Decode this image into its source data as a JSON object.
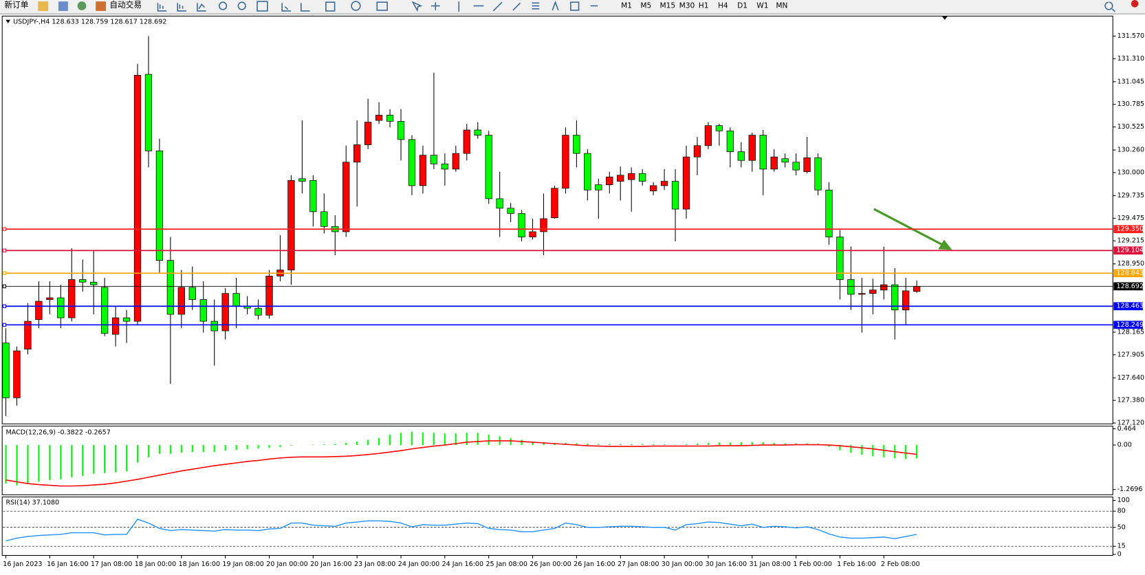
{
  "toolbar": {
    "new_order": "新订单",
    "auto_trading": "自动交易",
    "timeframes": [
      "M1",
      "M5",
      "M15",
      "M30",
      "H1",
      "H4",
      "D1",
      "W1",
      "MN"
    ]
  },
  "chart_data": [
    {
      "type": "candlestick",
      "title": "USDJPY-,H4  128.633 128.759 128.617 128.692",
      "up_color": "#ff0000",
      "down_color": "#00ff00",
      "categories": [
        "16 Jan 2023",
        null,
        null,
        null,
        "16 Jan 16:00",
        null,
        null,
        null,
        "17 Jan 08:00",
        null,
        null,
        null,
        "18 Jan 00:00",
        null,
        null,
        null,
        "18 Jan 16:00",
        null,
        null,
        null,
        "19 Jan 08:00",
        null,
        null,
        null,
        "20 Jan 00:00",
        null,
        null,
        null,
        "20 Jan 16:00",
        null,
        null,
        null,
        "23 Jan 08:00",
        null,
        null,
        null,
        "24 Jan 00:00",
        null,
        null,
        null,
        "24 Jan 16:00",
        null,
        null,
        null,
        "25 Jan 08:00",
        null,
        null,
        null,
        "26 Jan 00:00",
        null,
        null,
        null,
        "26 Jan 16:00",
        null,
        null,
        null,
        "27 Jan 08:00",
        null,
        null,
        null,
        "30 Jan 00:00",
        null,
        null,
        null,
        "30 Jan 16:00",
        null,
        null,
        null,
        "31 Jan 08:00",
        null,
        null,
        null,
        "1 Feb 00:00",
        null,
        null,
        null,
        "1 Feb 16:00",
        null,
        null,
        null,
        "2 Feb 08:00",
        null,
        null,
        null
      ],
      "ohlc": [
        [
          128.04,
          128.21,
          127.2,
          127.41
        ],
        [
          127.41,
          128.0,
          127.32,
          127.95
        ],
        [
          127.97,
          128.5,
          127.91,
          128.29
        ],
        [
          128.31,
          128.75,
          128.21,
          128.52
        ],
        [
          128.54,
          128.75,
          128.37,
          128.56
        ],
        [
          128.56,
          128.71,
          128.21,
          128.33
        ],
        [
          128.33,
          129.13,
          128.29,
          128.77
        ],
        [
          128.77,
          129.0,
          128.63,
          128.74
        ],
        [
          128.74,
          129.11,
          128.37,
          128.71
        ],
        [
          128.68,
          128.79,
          128.12,
          128.15
        ],
        [
          128.14,
          128.46,
          128.0,
          128.33
        ],
        [
          128.33,
          128.42,
          128.04,
          128.29
        ],
        [
          128.29,
          131.25,
          128.25,
          131.12
        ],
        [
          131.13,
          131.57,
          130.06,
          130.25
        ],
        [
          130.25,
          130.39,
          128.84,
          128.99
        ],
        [
          128.99,
          129.26,
          127.57,
          128.37
        ],
        [
          128.37,
          128.88,
          128.21,
          128.68
        ],
        [
          128.68,
          128.92,
          128.42,
          128.54
        ],
        [
          128.54,
          128.75,
          128.16,
          128.29
        ],
        [
          128.29,
          128.54,
          127.78,
          128.18
        ],
        [
          128.18,
          128.67,
          128.08,
          128.61
        ],
        [
          128.61,
          128.79,
          128.21,
          128.46
        ],
        [
          128.46,
          128.58,
          128.37,
          128.44
        ],
        [
          128.44,
          128.54,
          128.31,
          128.36
        ],
        [
          128.36,
          128.88,
          128.32,
          128.81
        ],
        [
          128.81,
          129.28,
          128.75,
          128.88
        ],
        [
          128.88,
          129.97,
          128.71,
          129.91
        ],
        [
          129.93,
          130.6,
          129.76,
          129.9
        ],
        [
          129.91,
          129.97,
          129.38,
          129.55
        ],
        [
          129.55,
          129.76,
          129.3,
          129.38
        ],
        [
          129.38,
          129.51,
          129.05,
          129.32
        ],
        [
          129.32,
          130.31,
          129.26,
          130.12
        ],
        [
          130.12,
          130.6,
          129.61,
          130.32
        ],
        [
          130.32,
          130.85,
          130.27,
          130.58
        ],
        [
          130.6,
          130.81,
          130.56,
          130.66
        ],
        [
          130.66,
          130.73,
          130.52,
          130.59
        ],
        [
          130.59,
          130.73,
          130.14,
          130.38
        ],
        [
          130.38,
          130.43,
          129.74,
          129.85
        ],
        [
          129.85,
          130.31,
          129.76,
          130.2
        ],
        [
          130.2,
          131.15,
          130.04,
          130.1
        ],
        [
          130.1,
          130.22,
          129.85,
          130.04
        ],
        [
          130.04,
          130.31,
          130.01,
          130.22
        ],
        [
          130.22,
          130.56,
          130.14,
          130.49
        ],
        [
          130.49,
          130.58,
          130.39,
          130.43
        ],
        [
          130.43,
          130.48,
          129.64,
          129.7
        ],
        [
          129.7,
          130.01,
          129.26,
          129.59
        ],
        [
          129.59,
          129.65,
          129.43,
          129.53
        ],
        [
          129.53,
          129.57,
          129.21,
          129.26
        ],
        [
          129.26,
          129.47,
          129.23,
          129.32
        ],
        [
          129.32,
          129.76,
          129.05,
          129.47
        ],
        [
          129.48,
          129.85,
          129.47,
          129.82
        ],
        [
          129.82,
          130.52,
          129.76,
          130.43
        ],
        [
          130.43,
          130.6,
          130.06,
          130.22
        ],
        [
          130.22,
          130.27,
          129.68,
          129.8
        ],
        [
          129.86,
          129.93,
          129.47,
          129.8
        ],
        [
          129.86,
          130.01,
          129.76,
          129.95
        ],
        [
          129.9,
          130.07,
          129.68,
          129.97
        ],
        [
          129.92,
          130.06,
          129.55,
          129.99
        ],
        [
          129.99,
          130.04,
          129.85,
          129.9
        ],
        [
          129.79,
          129.89,
          129.74,
          129.85
        ],
        [
          129.85,
          130.04,
          129.8,
          129.9
        ],
        [
          129.9,
          130.04,
          129.21,
          129.58
        ],
        [
          129.58,
          130.31,
          129.47,
          130.18
        ],
        [
          130.18,
          130.41,
          129.97,
          130.31
        ],
        [
          130.31,
          130.58,
          130.27,
          130.54
        ],
        [
          130.54,
          130.56,
          130.31,
          130.48
        ],
        [
          130.48,
          130.52,
          130.06,
          130.24
        ],
        [
          130.24,
          130.35,
          130.06,
          130.14
        ],
        [
          130.14,
          130.46,
          130.01,
          130.43
        ],
        [
          130.43,
          130.49,
          129.74,
          130.04
        ],
        [
          130.04,
          130.27,
          130.01,
          130.18
        ],
        [
          130.16,
          130.22,
          130.06,
          130.12
        ],
        [
          130.12,
          130.22,
          129.97,
          130.03
        ],
        [
          130.01,
          130.41,
          129.99,
          130.17
        ],
        [
          130.17,
          130.22,
          129.74,
          129.8
        ],
        [
          129.8,
          129.89,
          129.17,
          129.26
        ],
        [
          129.26,
          129.34,
          128.54,
          128.77
        ],
        [
          128.77,
          129.15,
          128.42,
          128.6
        ],
        [
          128.6,
          128.79,
          128.16,
          128.61
        ],
        [
          128.61,
          128.78,
          128.37,
          128.65
        ],
        [
          128.65,
          129.15,
          128.54,
          128.71
        ],
        [
          128.71,
          128.9,
          128.08,
          128.42
        ],
        [
          128.42,
          128.79,
          128.25,
          128.64
        ],
        [
          128.633,
          128.759,
          128.617,
          128.692
        ]
      ],
      "ylim": [
        127.11,
        131.8
      ],
      "yticks": [
        {
          "value": 131.57,
          "label": "131.570"
        },
        {
          "value": 131.31,
          "label": "131.310"
        },
        131.045,
        130.785,
        130.525,
        {
          "value": 130.26,
          "label": "130.260"
        },
        {
          "value": 130,
          "label": "130.000"
        },
        129.735,
        129.475,
        129.215,
        {
          "value": 128.95,
          "label": "128.950"
        },
        128.165,
        127.905,
        {
          "value": 127.64,
          "label": "127.640"
        },
        {
          "value": 127.38,
          "label": "127.380"
        },
        {
          "value": 127.12,
          "label": "127.120"
        }
      ],
      "levels": [
        {
          "value": 129.35,
          "label": "129.350",
          "color": "#ff2020"
        },
        {
          "value": 129.104,
          "label": "129.104",
          "color": "#e0103c"
        },
        {
          "value": 128.843,
          "label": "128.843",
          "color": "#ffa500"
        },
        {
          "value": 128.692,
          "label": "128.692",
          "color": "#000000"
        },
        {
          "value": 128.463,
          "label": "128.463",
          "color": "#0000ff"
        },
        {
          "value": 128.249,
          "label": "128.249",
          "color": "#0000ff"
        }
      ]
    },
    {
      "type": "macd",
      "title": "MACD(12,26,9) -0.3822 -0.2657",
      "histogram": {
        "color": "#00ff00",
        "values": [
          -1.1,
          -1.15,
          -1.12,
          -1.05,
          -1.0,
          -0.98,
          -0.92,
          -0.88,
          -0.82,
          -0.8,
          -0.78,
          -0.75,
          -0.5,
          -0.35,
          -0.25,
          -0.25,
          -0.22,
          -0.2,
          -0.2,
          -0.2,
          -0.16,
          -0.14,
          -0.12,
          -0.1,
          -0.08,
          -0.06,
          -0.02,
          0.0,
          0.01,
          0.02,
          0.03,
          0.06,
          0.1,
          0.15,
          0.2,
          0.3,
          0.35,
          0.38,
          0.36,
          0.35,
          0.33,
          0.33,
          0.35,
          0.35,
          0.3,
          0.25,
          0.2,
          0.15,
          0.1,
          0.08,
          0.06,
          0.06,
          0.05,
          0.04,
          0.03,
          0.03,
          0.03,
          0.03,
          0.03,
          0.02,
          0.02,
          0.01,
          0.02,
          0.04,
          0.06,
          0.07,
          0.07,
          0.08,
          0.08,
          0.08,
          0.06,
          0.05,
          0.05,
          0.05,
          0.04,
          -0.05,
          -0.15,
          -0.22,
          -0.28,
          -0.32,
          -0.35,
          -0.38,
          -0.4,
          -0.3822
        ]
      },
      "signal": {
        "color": "#ff0000",
        "values": [
          -1.0,
          -1.05,
          -1.1,
          -1.13,
          -1.15,
          -1.17,
          -1.17,
          -1.16,
          -1.14,
          -1.12,
          -1.08,
          -1.03,
          -0.98,
          -0.92,
          -0.86,
          -0.8,
          -0.74,
          -0.69,
          -0.64,
          -0.59,
          -0.55,
          -0.51,
          -0.47,
          -0.44,
          -0.4,
          -0.37,
          -0.35,
          -0.34,
          -0.34,
          -0.34,
          -0.33,
          -0.32,
          -0.3,
          -0.27,
          -0.24,
          -0.2,
          -0.16,
          -0.11,
          -0.07,
          -0.03,
          0.0,
          0.04,
          0.08,
          0.1,
          0.12,
          0.12,
          0.12,
          0.1,
          0.08,
          0.06,
          0.04,
          0.02,
          0.0,
          -0.02,
          -0.03,
          -0.04,
          -0.04,
          -0.04,
          -0.04,
          -0.03,
          -0.03,
          -0.03,
          -0.03,
          -0.03,
          -0.03,
          -0.02,
          -0.02,
          -0.02,
          -0.01,
          0.0,
          0.0,
          0.0,
          0.01,
          0.01,
          0.01,
          0.0,
          -0.02,
          -0.05,
          -0.08,
          -0.11,
          -0.15,
          -0.19,
          -0.23,
          -0.2657
        ]
      },
      "ylim": [
        -1.42,
        0.52
      ],
      "yticks": [
        0.464,
        {
          "value": 0,
          "label": "0.00"
        },
        -1.2696
      ]
    },
    {
      "type": "line",
      "title": "RSI(14) 37.1080",
      "color": "#1e90ff",
      "values": [
        25,
        30,
        33,
        35,
        36,
        37,
        40,
        40,
        40,
        36,
        37,
        37,
        65,
        58,
        48,
        44,
        46,
        45,
        44,
        43,
        46,
        45,
        45,
        44,
        47,
        48,
        58,
        58,
        54,
        53,
        52,
        58,
        60,
        62,
        62,
        61,
        58,
        51,
        55,
        54,
        54,
        56,
        58,
        57,
        48,
        46,
        45,
        42,
        42,
        45,
        48,
        58,
        55,
        50,
        50,
        51,
        52,
        52,
        51,
        50,
        50,
        45,
        55,
        57,
        60,
        59,
        56,
        53,
        56,
        50,
        52,
        51,
        49,
        51,
        46,
        38,
        32,
        30,
        30,
        31,
        32,
        29,
        33,
        37.108
      ],
      "ylim": [
        -2,
        105
      ],
      "yticks": [
        100,
        80,
        50,
        15,
        0
      ],
      "levels": [
        80,
        50,
        15
      ]
    }
  ]
}
